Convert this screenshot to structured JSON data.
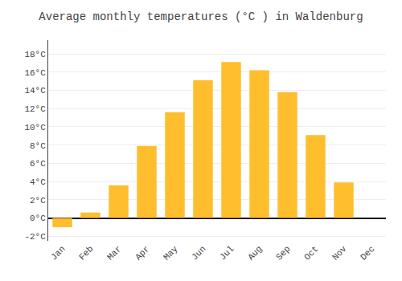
{
  "chart_data": {
    "type": "bar",
    "title": "Average monthly temperatures (°C ) in Waldenburg",
    "categories": [
      "Jan",
      "Feb",
      "Mar",
      "Apr",
      "May",
      "Jun",
      "Jul",
      "Aug",
      "Sep",
      "Oct",
      "Nov",
      "Dec"
    ],
    "values": [
      -1.0,
      0.6,
      3.6,
      7.9,
      11.6,
      15.1,
      17.1,
      16.2,
      13.8,
      9.1,
      3.9,
      0.0
    ],
    "color": "#FFBE2D",
    "ylim": [
      -2.5,
      19.5
    ],
    "yticks": [
      {
        "value": -2,
        "label": "-2°C"
      },
      {
        "value": 0,
        "label": "0°C"
      },
      {
        "value": 2,
        "label": "2°C"
      },
      {
        "value": 4,
        "label": "4°C"
      },
      {
        "value": 6,
        "label": "6°C"
      },
      {
        "value": 8,
        "label": "8°C"
      },
      {
        "value": 10,
        "label": "10°C"
      },
      {
        "value": 12,
        "label": "12°C"
      },
      {
        "value": 14,
        "label": "14°C"
      },
      {
        "value": 16,
        "label": "16°C"
      },
      {
        "value": 18,
        "label": "18°C"
      }
    ],
    "grid": true
  }
}
